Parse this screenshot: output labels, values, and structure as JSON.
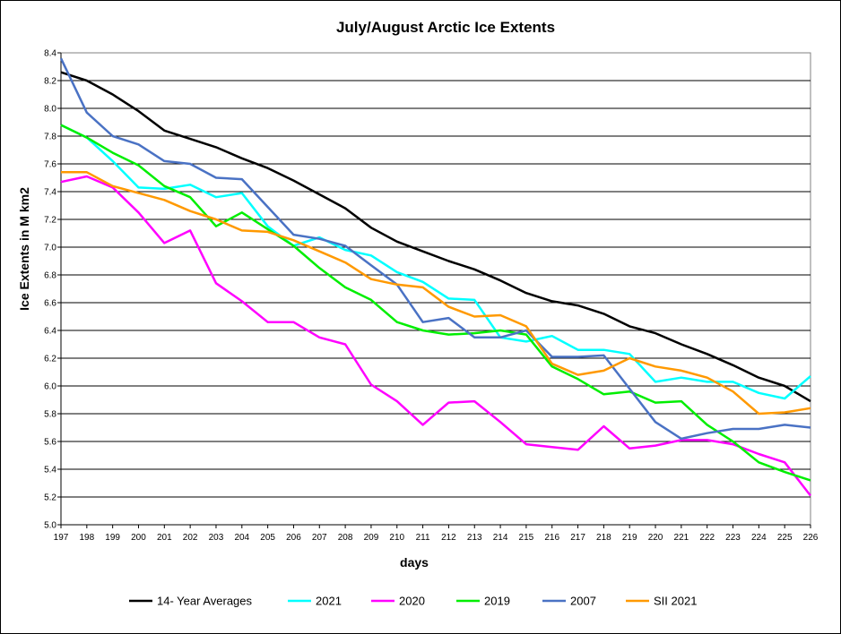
{
  "chart_data": {
    "type": "line",
    "title": "July/August Arctic Ice Extents",
    "xlabel": "days",
    "ylabel": "Ice Extents in M km2",
    "x": [
      197,
      198,
      199,
      200,
      201,
      202,
      203,
      204,
      205,
      206,
      207,
      208,
      209,
      210,
      211,
      212,
      213,
      214,
      215,
      216,
      217,
      218,
      219,
      220,
      221,
      222,
      223,
      224,
      225,
      226
    ],
    "ylim": [
      5.0,
      8.4
    ],
    "yticks": [
      "5.0",
      "5.2",
      "5.4",
      "5.6",
      "5.8",
      "6.0",
      "6.2",
      "6.4",
      "6.6",
      "6.8",
      "7.0",
      "7.2",
      "7.4",
      "7.6",
      "7.8",
      "8.0",
      "8.2",
      "8.4"
    ],
    "grid": true,
    "legend_position": "bottom",
    "series": [
      {
        "name": "14- Year Averages",
        "color": "#000000",
        "values": [
          8.26,
          8.2,
          8.1,
          7.98,
          7.84,
          7.78,
          7.72,
          7.64,
          7.57,
          7.48,
          7.38,
          7.28,
          7.14,
          7.04,
          6.97,
          6.9,
          6.84,
          6.76,
          6.67,
          6.61,
          6.58,
          6.52,
          6.43,
          6.38,
          6.3,
          6.23,
          6.15,
          6.06,
          6.0,
          5.89
        ]
      },
      {
        "name": "2021",
        "color": "#00ffff",
        "values": [
          7.88,
          7.79,
          7.62,
          7.43,
          7.42,
          7.45,
          7.36,
          7.39,
          7.15,
          7.01,
          7.07,
          6.98,
          6.94,
          6.82,
          6.75,
          6.63,
          6.62,
          6.35,
          6.32,
          6.36,
          6.26,
          6.26,
          6.23,
          6.03,
          6.06,
          6.03,
          6.03,
          5.95,
          5.91,
          6.07
        ]
      },
      {
        "name": "2020",
        "color": "#ff00ff",
        "values": [
          7.47,
          7.51,
          7.43,
          7.25,
          7.03,
          7.12,
          6.74,
          6.61,
          6.46,
          6.46,
          6.35,
          6.3,
          6.01,
          5.89,
          5.72,
          5.88,
          5.89,
          5.74,
          5.58,
          5.56,
          5.54,
          5.71,
          5.55,
          5.57,
          5.61,
          5.61,
          5.58,
          5.51,
          5.45,
          5.21
        ]
      },
      {
        "name": "2019",
        "color": "#00ee00",
        "values": [
          7.88,
          7.79,
          7.68,
          7.59,
          7.44,
          7.36,
          7.15,
          7.25,
          7.13,
          7.01,
          6.85,
          6.71,
          6.62,
          6.46,
          6.4,
          6.37,
          6.38,
          6.4,
          6.37,
          6.14,
          6.05,
          5.94,
          5.96,
          5.88,
          5.89,
          5.72,
          5.6,
          5.45,
          5.38,
          5.32
        ]
      },
      {
        "name": "2007",
        "color": "#4a72c4",
        "values": [
          8.36,
          7.97,
          7.8,
          7.74,
          7.62,
          7.6,
          7.5,
          7.49,
          7.29,
          7.09,
          7.06,
          7.01,
          6.87,
          6.73,
          6.46,
          6.49,
          6.35,
          6.35,
          6.4,
          6.21,
          6.21,
          6.22,
          5.98,
          5.74,
          5.62,
          5.66,
          5.69,
          5.69,
          5.72,
          5.7
        ]
      },
      {
        "name": "SII 2021",
        "color": "#ff9900",
        "values": [
          7.54,
          7.54,
          7.44,
          7.39,
          7.34,
          7.26,
          7.2,
          7.12,
          7.11,
          7.05,
          6.97,
          6.89,
          6.77,
          6.73,
          6.71,
          6.57,
          6.5,
          6.51,
          6.43,
          6.16,
          6.08,
          6.11,
          6.2,
          6.14,
          6.11,
          6.06,
          5.96,
          5.8,
          5.81,
          5.84
        ]
      }
    ]
  }
}
